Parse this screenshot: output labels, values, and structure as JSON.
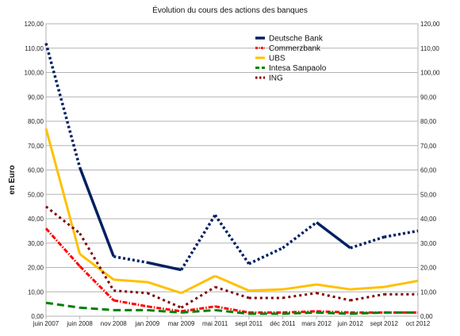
{
  "chart_data": {
    "type": "line",
    "title": "Évolution du cours des actions des banques",
    "ylabel": "en Euro",
    "xlabel": "",
    "ylim": [
      0,
      120
    ],
    "y_ticks": [
      "0,00",
      "10,00",
      "20,00",
      "30,00",
      "40,00",
      "50,00",
      "60,00",
      "70,00",
      "80,00",
      "90,00",
      "100,00",
      "110,00",
      "120,00"
    ],
    "categories": [
      "juin 2007",
      "juin 2008",
      "nov 2008",
      "jan 2009",
      "mar 2009",
      "mai 2011",
      "sept 2011",
      "déc 2011",
      "mars 2012",
      "juin 2012",
      "sept 2012",
      "oct 2012"
    ],
    "grid": true,
    "legend_position": "top-right",
    "series": [
      {
        "name": "Deutsche Bank",
        "color": "#002060",
        "values": [
          112,
          61,
          24.5,
          22,
          19,
          41.5,
          21.5,
          28,
          38.5,
          28,
          32.5,
          35
        ]
      },
      {
        "name": "Commerzbank",
        "color": "#ff0000",
        "values": [
          36,
          20.5,
          6.5,
          4,
          2,
          4,
          1.5,
          1.5,
          2,
          1.5,
          1.5,
          1.5
        ]
      },
      {
        "name": "UBS",
        "color": "#ffc000",
        "values": [
          77,
          25.5,
          15,
          14,
          9.5,
          16.5,
          10.5,
          11,
          13,
          11,
          12,
          14.5
        ]
      },
      {
        "name": "Intesa Sanpaolo",
        "color": "#008000",
        "values": [
          5.5,
          3.5,
          2.5,
          2.5,
          1.5,
          2.5,
          1,
          1,
          1.5,
          1,
          1.5,
          1.5
        ]
      },
      {
        "name": "ING",
        "color": "#7f0000",
        "values": [
          45,
          34,
          10.5,
          9.5,
          3.5,
          12,
          7.5,
          7.5,
          9.5,
          6.5,
          9,
          9
        ]
      }
    ]
  }
}
